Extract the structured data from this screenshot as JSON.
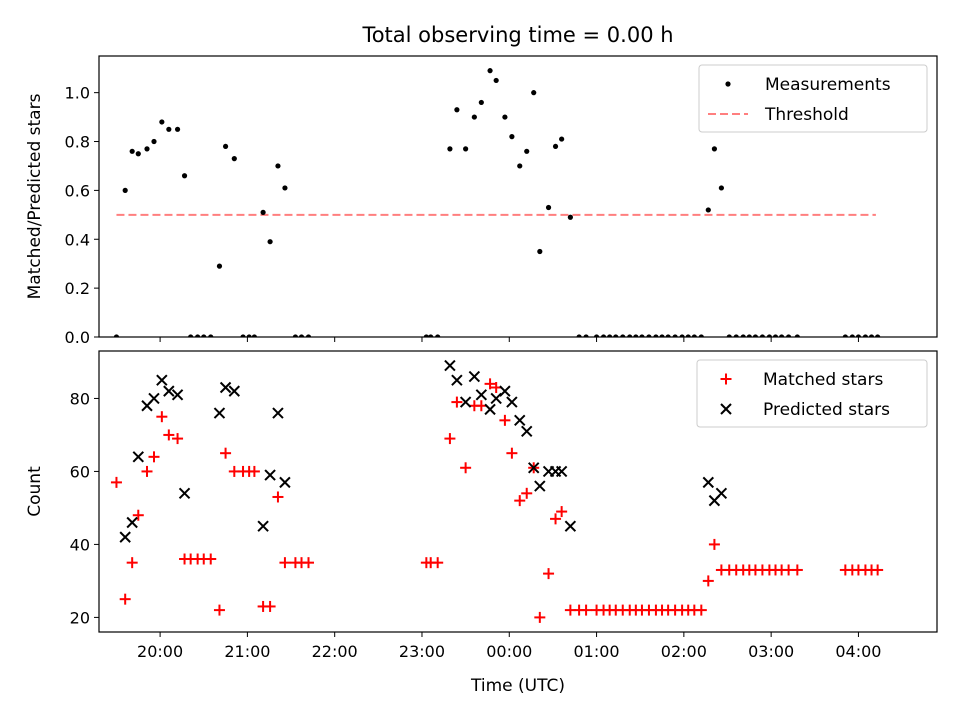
{
  "title": "Total observing time = 0.00 h",
  "chart_data": [
    {
      "type": "scatter",
      "ylabel": "Matched/Predicted stars",
      "xlim": [
        19.3,
        28.9
      ],
      "ylim": [
        0,
        1.15
      ],
      "yticks": [
        "0.0",
        "0.2",
        "0.4",
        "0.6",
        "0.8",
        "1.0"
      ],
      "ytick_values": [
        0,
        0.2,
        0.4,
        0.6,
        0.8,
        1.0
      ],
      "legend": {
        "placement": "top-right",
        "entries": [
          "Measurements",
          "Threshold"
        ]
      },
      "threshold": {
        "name": "Threshold",
        "value": 0.5,
        "x_range": [
          19.5,
          28.2
        ],
        "color": "#ff7f7f",
        "style": "dashed"
      },
      "series": [
        {
          "name": "Measurements",
          "marker": "dot",
          "color": "#000000",
          "x": [
            19.5,
            19.6,
            19.68,
            19.75,
            19.85,
            19.93,
            20.02,
            20.1,
            20.2,
            20.28,
            20.35,
            20.43,
            20.5,
            20.58,
            20.68,
            20.75,
            20.85,
            20.95,
            21.02,
            21.08,
            21.18,
            21.26,
            21.35,
            21.43,
            21.55,
            21.62,
            21.7,
            23.05,
            23.1,
            23.18,
            23.32,
            23.4,
            23.5,
            23.6,
            23.68,
            23.78,
            23.85,
            23.95,
            24.03,
            24.12,
            24.2,
            24.28,
            24.35,
            24.45,
            24.53,
            24.6,
            24.7,
            24.8,
            24.88,
            25.0,
            25.08,
            25.15,
            25.22,
            25.3,
            25.38,
            25.45,
            25.52,
            25.6,
            25.68,
            25.75,
            25.82,
            25.9,
            25.98,
            26.05,
            26.12,
            26.2,
            26.28,
            26.35,
            26.43,
            26.52,
            26.6,
            26.68,
            26.75,
            26.82,
            26.9,
            26.98,
            27.05,
            27.12,
            27.2,
            27.3,
            27.85,
            27.93,
            28.0,
            28.08,
            28.15,
            28.22
          ],
          "y": [
            0.0,
            0.6,
            0.76,
            0.75,
            0.77,
            0.8,
            0.88,
            0.85,
            0.85,
            0.66,
            0.0,
            0.0,
            0.0,
            0.0,
            0.29,
            0.78,
            0.73,
            0.0,
            0.0,
            0.0,
            0.51,
            0.39,
            0.7,
            0.61,
            0.0,
            0.0,
            0.0,
            0.0,
            0.0,
            0.0,
            0.77,
            0.93,
            0.77,
            0.9,
            0.96,
            1.09,
            1.05,
            0.9,
            0.82,
            0.7,
            0.76,
            1.0,
            0.35,
            0.53,
            0.78,
            0.81,
            0.49,
            0.0,
            0.0,
            0.0,
            0.0,
            0.0,
            0.0,
            0.0,
            0.0,
            0.0,
            0.0,
            0.0,
            0.0,
            0.0,
            0.0,
            0.0,
            0.0,
            0.0,
            0.0,
            0.0,
            0.52,
            0.77,
            0.61,
            0.0,
            0.0,
            0.0,
            0.0,
            0.0,
            0.0,
            0.0,
            0.0,
            0.0,
            0.0,
            0.0,
            0.0,
            0.0,
            0.0,
            0.0,
            0.0,
            0.0
          ]
        }
      ]
    },
    {
      "type": "scatter",
      "xlabel": "Time (UTC)",
      "ylabel": "Count",
      "xlim": [
        19.3,
        28.9
      ],
      "ylim": [
        16,
        93
      ],
      "yticks": [
        "20",
        "40",
        "60",
        "80"
      ],
      "ytick_values": [
        20,
        40,
        60,
        80
      ],
      "xticks": [
        "20:00",
        "21:00",
        "22:00",
        "23:00",
        "00:00",
        "01:00",
        "02:00",
        "03:00",
        "04:00"
      ],
      "xtick_values": [
        20,
        21,
        22,
        23,
        24,
        25,
        26,
        27,
        28
      ],
      "legend": {
        "placement": "top-right",
        "entries": [
          "Matched stars",
          "Predicted stars"
        ]
      },
      "series": [
        {
          "name": "Matched stars",
          "marker": "plus",
          "color": "#ff0000",
          "x": [
            19.5,
            19.6,
            19.68,
            19.75,
            19.85,
            19.93,
            20.02,
            20.1,
            20.2,
            20.28,
            20.35,
            20.43,
            20.5,
            20.58,
            20.68,
            20.75,
            20.85,
            20.95,
            21.02,
            21.08,
            21.18,
            21.26,
            21.35,
            21.43,
            21.55,
            21.62,
            21.7,
            23.05,
            23.1,
            23.18,
            23.32,
            23.4,
            23.5,
            23.6,
            23.68,
            23.78,
            23.85,
            23.95,
            24.03,
            24.12,
            24.2,
            24.28,
            24.35,
            24.45,
            24.53,
            24.6,
            24.7,
            24.8,
            24.88,
            25.0,
            25.08,
            25.15,
            25.22,
            25.3,
            25.38,
            25.45,
            25.52,
            25.6,
            25.68,
            25.75,
            25.82,
            25.9,
            25.98,
            26.05,
            26.12,
            26.2,
            26.28,
            26.35,
            26.43,
            26.52,
            26.6,
            26.68,
            26.75,
            26.82,
            26.9,
            26.98,
            27.05,
            27.12,
            27.2,
            27.3,
            27.85,
            27.93,
            28.0,
            28.08,
            28.15,
            28.22
          ],
          "y": [
            57,
            25,
            35,
            48,
            60,
            64,
            75,
            70,
            69,
            36,
            36,
            36,
            36,
            36,
            22,
            65,
            60,
            60,
            60,
            60,
            23,
            23,
            53,
            35,
            35,
            35,
            35,
            35,
            35,
            35,
            69,
            79,
            61,
            78,
            78,
            84,
            83,
            74,
            65,
            52,
            54,
            61,
            20,
            32,
            47,
            49,
            22,
            22,
            22,
            22,
            22,
            22,
            22,
            22,
            22,
            22,
            22,
            22,
            22,
            22,
            22,
            22,
            22,
            22,
            22,
            22,
            30,
            40,
            33,
            33,
            33,
            33,
            33,
            33,
            33,
            33,
            33,
            33,
            33,
            33,
            33,
            33,
            33,
            33,
            33,
            33
          ]
        },
        {
          "name": "Predicted stars",
          "marker": "cross",
          "color": "#000000",
          "x": [
            19.6,
            19.68,
            19.75,
            19.85,
            19.93,
            20.02,
            20.1,
            20.2,
            20.28,
            20.68,
            20.75,
            20.85,
            21.18,
            21.26,
            21.35,
            21.43,
            23.32,
            23.4,
            23.5,
            23.6,
            23.68,
            23.78,
            23.85,
            23.95,
            24.03,
            24.12,
            24.2,
            24.28,
            24.35,
            24.45,
            24.53,
            24.6,
            24.7,
            26.28,
            26.35,
            26.43
          ],
          "y": [
            42,
            46,
            64,
            78,
            80,
            85,
            82,
            81,
            54,
            76,
            83,
            82,
            45,
            59,
            76,
            57,
            89,
            85,
            79,
            86,
            81,
            77,
            80,
            82,
            79,
            74,
            71,
            61,
            56,
            60,
            60,
            60,
            45,
            57,
            52,
            54
          ]
        }
      ]
    }
  ]
}
